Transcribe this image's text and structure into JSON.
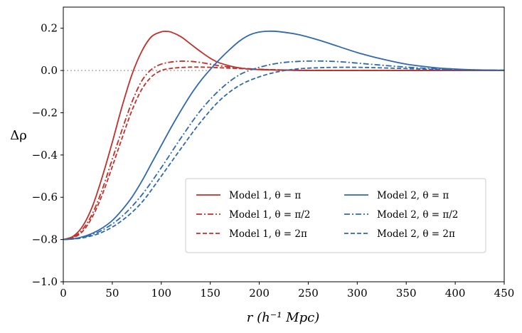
{
  "chart_data": {
    "type": "line",
    "title": "",
    "xlabel": "r   (h⁻¹ Mpc)",
    "ylabel": "Δρ",
    "xlim": [
      0,
      450
    ],
    "ylim": [
      -1.0,
      0.3
    ],
    "xticks": [
      0,
      50,
      100,
      150,
      200,
      250,
      300,
      350,
      400,
      450
    ],
    "xtick_labels": [
      "0",
      "50",
      "100",
      "150",
      "200",
      "250",
      "300",
      "350",
      "400",
      "450"
    ],
    "yticks": [
      -1.0,
      -0.8,
      -0.6,
      -0.4,
      -0.2,
      0.0,
      0.2
    ],
    "ytick_labels": [
      "−1.0",
      "−0.8",
      "−0.6",
      "−0.4",
      "−0.2",
      "0.0",
      "0.2"
    ],
    "grid": false,
    "legend_position": "lower-right",
    "reference_line": {
      "y": 0.0,
      "style": "dotted",
      "color": "#b0b0b0"
    },
    "colors": {
      "model1": "#c0302a",
      "model2": "#2f68ad"
    },
    "series": [
      {
        "name": "Model 1, θ = π",
        "color": "#c0302a",
        "dash": "solid",
        "x": [
          0,
          10,
          20,
          30,
          40,
          50,
          60,
          70,
          80,
          90,
          100,
          105,
          110,
          120,
          130,
          140,
          150,
          160,
          180,
          200,
          230,
          260,
          300,
          350,
          400,
          450
        ],
        "y": [
          -0.8,
          -0.785,
          -0.735,
          -0.64,
          -0.5,
          -0.34,
          -0.17,
          -0.02,
          0.09,
          0.16,
          0.183,
          0.185,
          0.182,
          0.16,
          0.125,
          0.09,
          0.058,
          0.035,
          0.012,
          0.004,
          0.001,
          0.0,
          0.0,
          0.0,
          0.0,
          0.0
        ]
      },
      {
        "name": "Model 1, θ = π/2",
        "color": "#c0302a",
        "dash": "dashdot",
        "x": [
          0,
          10,
          20,
          30,
          40,
          50,
          60,
          70,
          80,
          90,
          100,
          110,
          120,
          130,
          140,
          150,
          160,
          180,
          200,
          230,
          260,
          300,
          350,
          400,
          450
        ],
        "y": [
          -0.8,
          -0.79,
          -0.75,
          -0.675,
          -0.56,
          -0.42,
          -0.28,
          -0.15,
          -0.05,
          0.005,
          0.03,
          0.04,
          0.044,
          0.043,
          0.038,
          0.03,
          0.022,
          0.012,
          0.006,
          0.002,
          0.001,
          0.0,
          0.0,
          0.0,
          0.0
        ]
      },
      {
        "name": "Model 1, θ = 2π",
        "color": "#c0302a",
        "dash": "dashed",
        "x": [
          0,
          10,
          20,
          30,
          40,
          50,
          60,
          70,
          80,
          90,
          100,
          110,
          120,
          130,
          140,
          150,
          160,
          180,
          200,
          230,
          260,
          300,
          350,
          400,
          450
        ],
        "y": [
          -0.8,
          -0.792,
          -0.76,
          -0.69,
          -0.585,
          -0.455,
          -0.32,
          -0.19,
          -0.09,
          -0.03,
          0.0,
          0.01,
          0.014,
          0.016,
          0.016,
          0.015,
          0.013,
          0.009,
          0.005,
          0.002,
          0.0,
          0.0,
          0.0,
          0.0,
          0.0
        ]
      },
      {
        "name": "Model 2, θ = π",
        "color": "#2f68ad",
        "dash": "solid",
        "x": [
          0,
          10,
          20,
          30,
          40,
          50,
          60,
          70,
          80,
          90,
          100,
          110,
          120,
          130,
          140,
          150,
          160,
          170,
          180,
          190,
          200,
          210,
          220,
          240,
          260,
          280,
          300,
          320,
          350,
          380,
          400,
          420,
          450
        ],
        "y": [
          -0.8,
          -0.797,
          -0.787,
          -0.77,
          -0.745,
          -0.71,
          -0.66,
          -0.6,
          -0.525,
          -0.44,
          -0.355,
          -0.27,
          -0.19,
          -0.115,
          -0.05,
          0.005,
          0.055,
          0.1,
          0.14,
          0.168,
          0.182,
          0.186,
          0.184,
          0.17,
          0.145,
          0.115,
          0.085,
          0.06,
          0.03,
          0.013,
          0.007,
          0.003,
          0.001
        ]
      },
      {
        "name": "Model 2, θ = π/2",
        "color": "#2f68ad",
        "dash": "dashdot",
        "x": [
          0,
          20,
          40,
          60,
          80,
          100,
          120,
          140,
          160,
          180,
          200,
          220,
          240,
          260,
          280,
          300,
          320,
          350,
          380,
          400,
          420,
          450
        ],
        "y": [
          -0.8,
          -0.79,
          -0.755,
          -0.69,
          -0.59,
          -0.46,
          -0.32,
          -0.19,
          -0.09,
          -0.02,
          0.015,
          0.035,
          0.043,
          0.045,
          0.042,
          0.035,
          0.027,
          0.016,
          0.008,
          0.005,
          0.003,
          0.001
        ]
      },
      {
        "name": "Model 2, θ = 2π",
        "color": "#2f68ad",
        "dash": "dashed",
        "x": [
          0,
          20,
          40,
          60,
          80,
          100,
          120,
          140,
          160,
          180,
          200,
          220,
          240,
          260,
          280,
          300,
          320,
          350,
          380,
          400,
          420,
          450
        ],
        "y": [
          -0.8,
          -0.792,
          -0.765,
          -0.71,
          -0.625,
          -0.5,
          -0.37,
          -0.245,
          -0.14,
          -0.07,
          -0.03,
          -0.005,
          0.008,
          0.013,
          0.015,
          0.015,
          0.013,
          0.009,
          0.005,
          0.003,
          0.002,
          0.001
        ]
      }
    ]
  },
  "legend": {
    "items": [
      {
        "label": "Model 1,  θ = π"
      },
      {
        "label": "Model 1,  θ = π/2"
      },
      {
        "label": "Model 1,  θ = 2π"
      },
      {
        "label": "Model 2,  θ = π"
      },
      {
        "label": "Model 2,  θ = π/2"
      },
      {
        "label": "Model 2,  θ = 2π"
      }
    ]
  }
}
